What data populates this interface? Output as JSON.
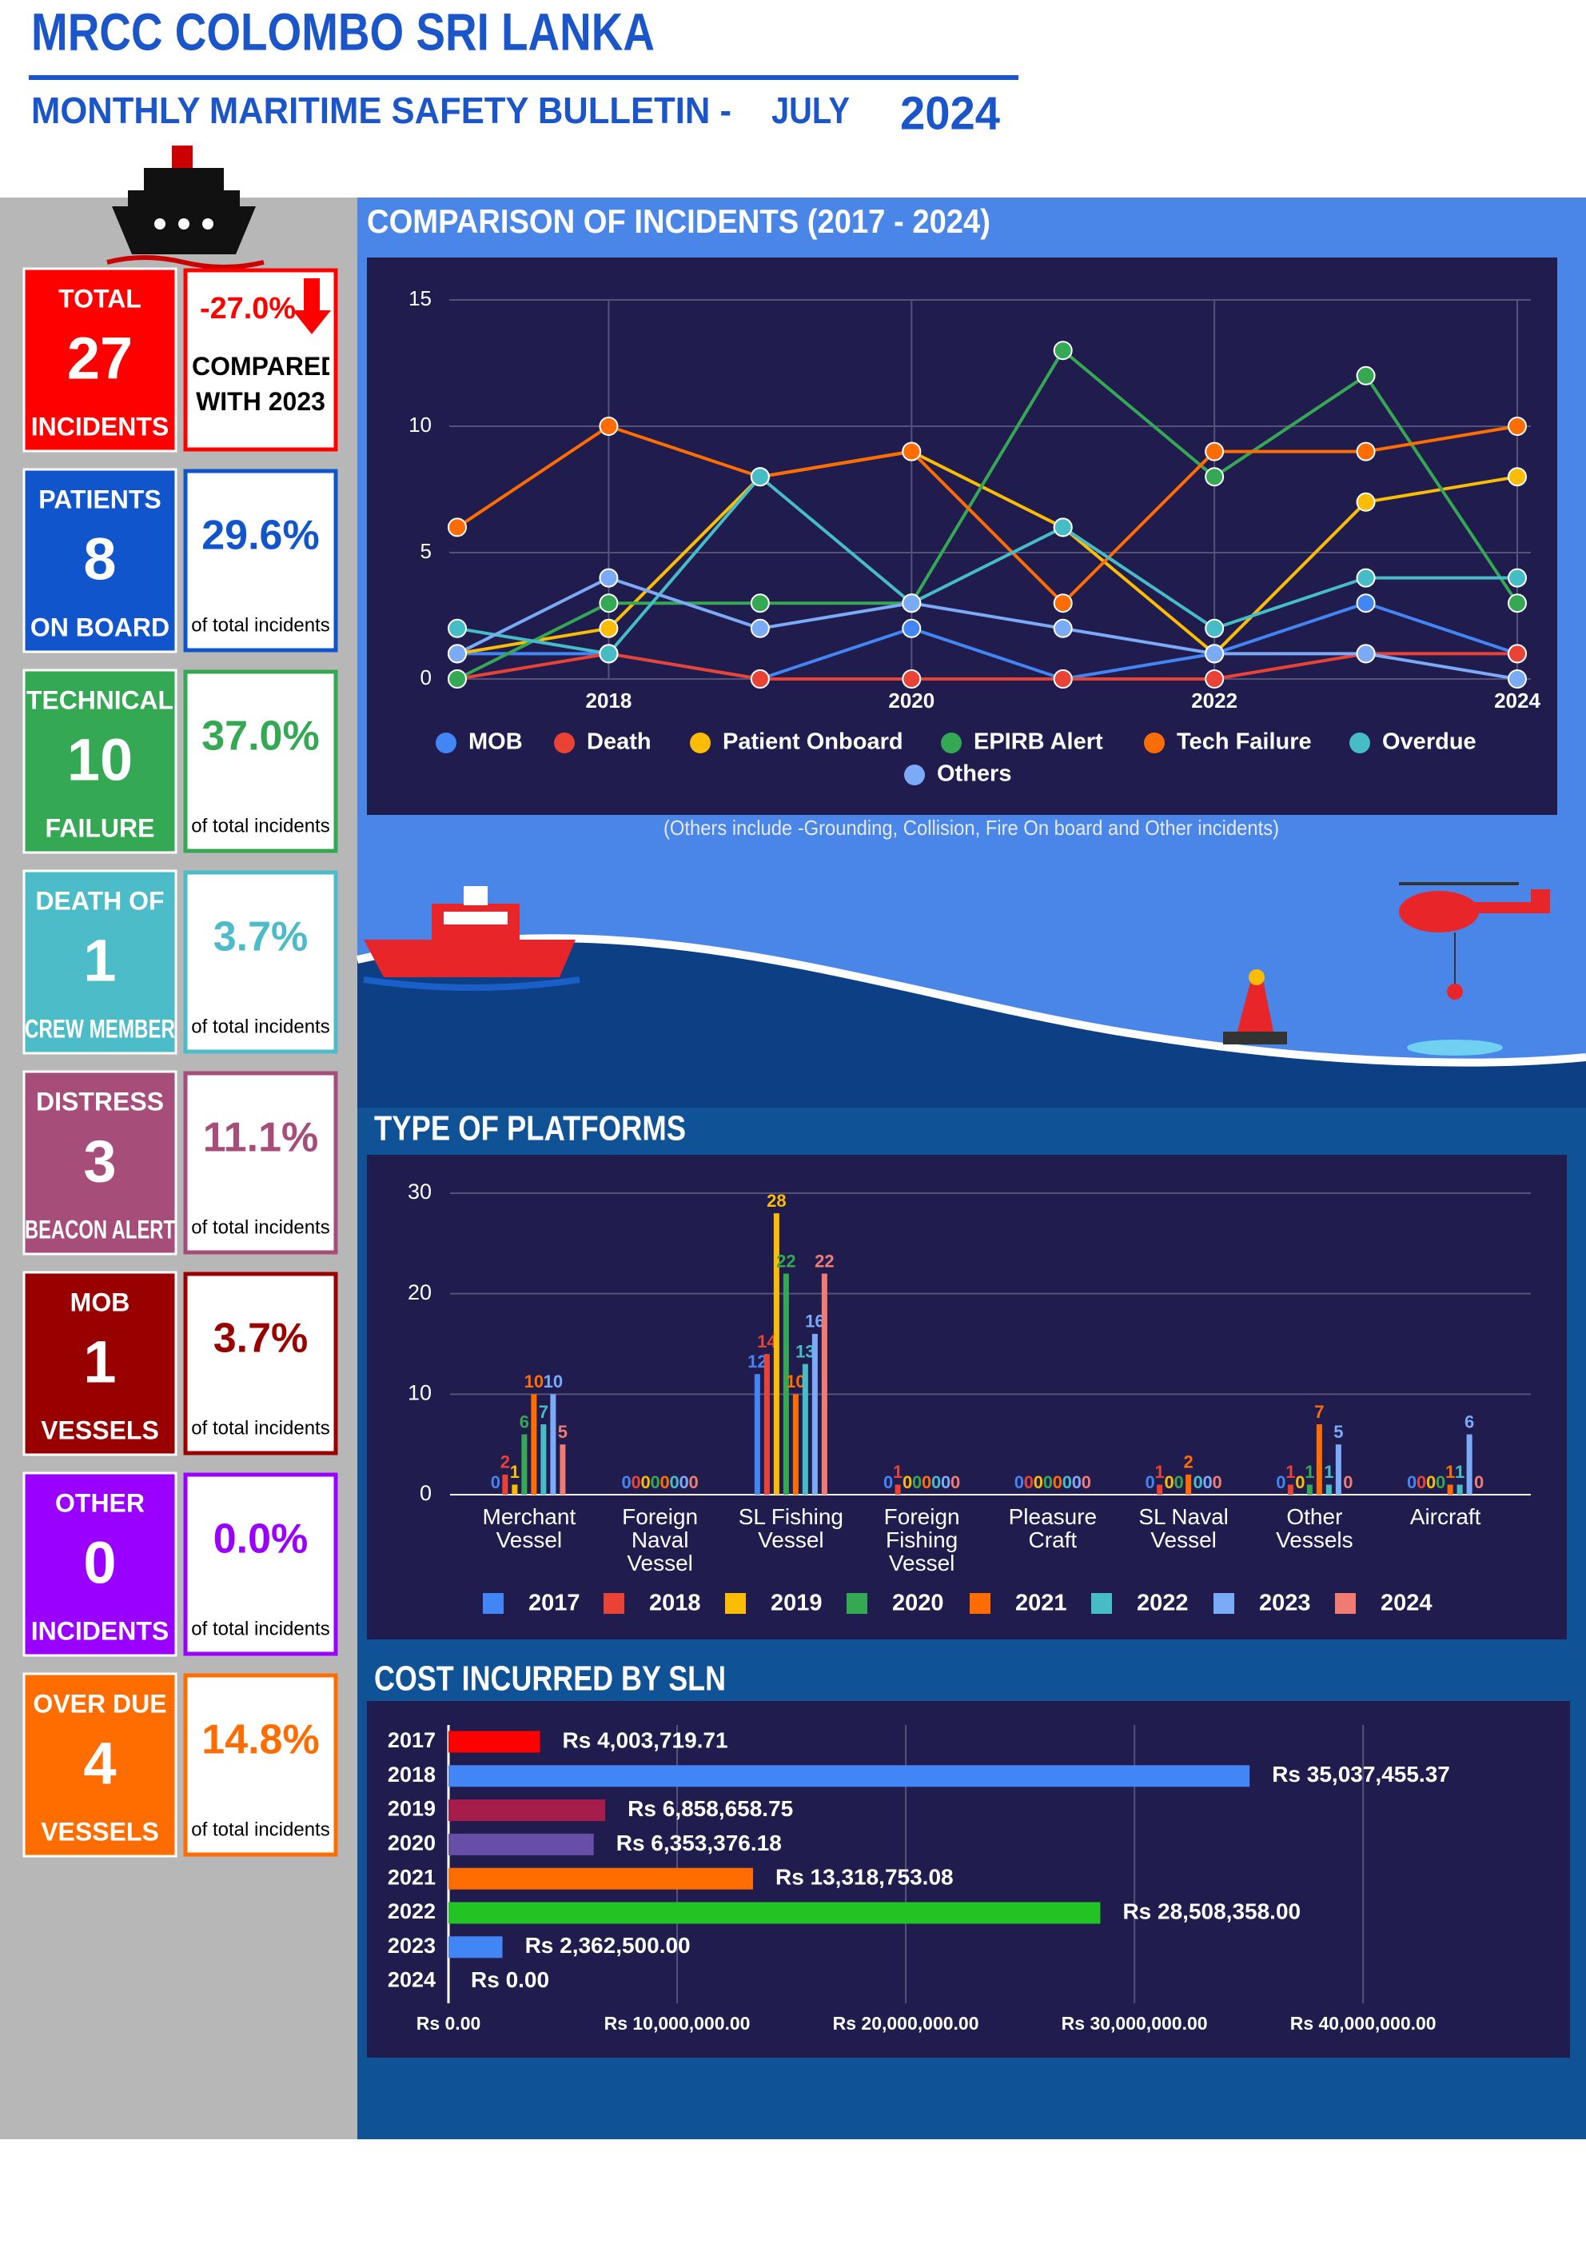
{
  "header": {
    "title": "MRCC COLOMBO SRI LANKA",
    "subtitle": "MONTHLY MARITIME SAFETY BULLETIN -",
    "month": "JULY",
    "year": "2024"
  },
  "cards": [
    {
      "top": "TOTAL",
      "value": "27",
      "bottom": "INCIDENTS",
      "percent": "-27.0%",
      "note": "COMPARED WITH 2023",
      "color": "#ff0000"
    },
    {
      "top": "PATIENTS",
      "value": "8",
      "bottom": "ON BOARD",
      "percent": "29.6%",
      "note": "of total incidents",
      "color": "#1155cc"
    },
    {
      "top": "TECHNICAL",
      "value": "10",
      "bottom": "FAILURE",
      "percent": "37.0%",
      "note": "of total incidents",
      "color": "#34a853"
    },
    {
      "top": "DEATH OF",
      "value": "1",
      "bottom": "CREW MEMBER",
      "percent": "3.7%",
      "note": "of total incidents",
      "color": "#4bbcc8"
    },
    {
      "top": "DISTRESS",
      "value": "3",
      "bottom": "BEACON ALERT",
      "percent": "11.1%",
      "note": "of total incidents",
      "color": "#a64d79"
    },
    {
      "top": "MOB",
      "value": "1",
      "bottom": "VESSELS",
      "percent": "3.7%",
      "note": "of total incidents",
      "color": "#990000"
    },
    {
      "top": "OTHER",
      "value": "0",
      "bottom": "INCIDENTS",
      "percent": "0.0%",
      "note": "of total incidents",
      "color": "#9900ff"
    },
    {
      "top": "OVER DUE",
      "value": "4",
      "bottom": "VESSELS",
      "percent": "14.8%",
      "note": "of total incidents",
      "color": "#ff6d01"
    }
  ],
  "chart_data": [
    {
      "type": "line",
      "title": "COMPARISON OF INCIDENTS (2017 - 2024)",
      "note": "(Others include -Grounding, Collision, Fire On board and Other incidents)",
      "x": [
        2017,
        2018,
        2019,
        2020,
        2021,
        2022,
        2023,
        2024
      ],
      "xlim": [
        2017,
        2024
      ],
      "xticks": [
        2018,
        2020,
        2022,
        2024
      ],
      "ylim": [
        0,
        15
      ],
      "yticks": [
        0,
        5,
        10,
        15
      ],
      "grid": true,
      "legend": "bottom",
      "series": [
        {
          "name": "MOB",
          "color": "#4285f4",
          "values": [
            1,
            1,
            0,
            2,
            0,
            1,
            3,
            1
          ]
        },
        {
          "name": "Death",
          "color": "#ea4335",
          "values": [
            0,
            1,
            0,
            0,
            0,
            0,
            1,
            1
          ]
        },
        {
          "name": "Patient Onboard",
          "color": "#fbbc04",
          "values": [
            1,
            2,
            8,
            9,
            6,
            1,
            7,
            8
          ]
        },
        {
          "name": "EPIRB Alert",
          "color": "#34a853",
          "values": [
            0,
            3,
            3,
            3,
            13,
            8,
            12,
            3
          ]
        },
        {
          "name": "Tech Failure",
          "color": "#ff6d01",
          "values": [
            6,
            10,
            8,
            9,
            3,
            9,
            9,
            10
          ]
        },
        {
          "name": "Overdue",
          "color": "#46bdc6",
          "values": [
            2,
            1,
            8,
            3,
            6,
            2,
            4,
            4
          ]
        },
        {
          "name": "Others",
          "color": "#7baaf7",
          "values": [
            1,
            4,
            2,
            3,
            2,
            1,
            1,
            0
          ]
        }
      ]
    },
    {
      "type": "bar",
      "title": "TYPE OF PLATFORMS",
      "categories": [
        "Merchant Vessel",
        "Foreign Naval Vessel",
        "SL Fishing Vessel",
        "Foreign Fishing Vessel",
        "Pleasure Craft",
        "SL Naval Vessel",
        "Other Vessels",
        "Aircraft"
      ],
      "ylim": [
        0,
        30
      ],
      "yticks": [
        0,
        10,
        20,
        30
      ],
      "grid": true,
      "legend": "bottom",
      "series": [
        {
          "name": "2017",
          "color": "#4285f4",
          "values": [
            0,
            0,
            12,
            0,
            0,
            0,
            0,
            0
          ]
        },
        {
          "name": "2018",
          "color": "#ea4335",
          "values": [
            2,
            0,
            14,
            1,
            0,
            1,
            1,
            0
          ]
        },
        {
          "name": "2019",
          "color": "#fbbc04",
          "values": [
            1,
            0,
            28,
            0,
            0,
            0,
            0,
            0
          ]
        },
        {
          "name": "2020",
          "color": "#34a853",
          "values": [
            6,
            0,
            22,
            0,
            0,
            0,
            1,
            0
          ]
        },
        {
          "name": "2021",
          "color": "#ff6d01",
          "values": [
            10,
            0,
            10,
            0,
            0,
            2,
            7,
            1
          ]
        },
        {
          "name": "2022",
          "color": "#46bdc6",
          "values": [
            7,
            0,
            13,
            0,
            0,
            0,
            1,
            1
          ]
        },
        {
          "name": "2023",
          "color": "#7baaf7",
          "values": [
            10,
            0,
            16,
            0,
            0,
            0,
            5,
            6
          ]
        },
        {
          "name": "2024",
          "color": "#f07b72",
          "values": [
            5,
            0,
            22,
            0,
            0,
            0,
            0,
            0
          ]
        }
      ]
    },
    {
      "type": "barh",
      "title": "COST INCURRED BY SLN",
      "categories": [
        "2017",
        "2018",
        "2019",
        "2020",
        "2021",
        "2022",
        "2023",
        "2024"
      ],
      "values": [
        4003719.71,
        35037455.37,
        6858658.75,
        6353376.18,
        13318753.08,
        28508358.0,
        2362500.0,
        0
      ],
      "value_labels": [
        "Rs 4,003,719.71",
        "Rs 35,037,455.37",
        "Rs 6,858,658.75",
        "Rs 6,353,376.18",
        "Rs 13,318,753.08",
        "Rs 28,508,358.00",
        "Rs 2,362,500.00",
        "Rs 0.00"
      ],
      "colors": [
        "#ff0000",
        "#4285f4",
        "#a61c4b",
        "#674ea7",
        "#ff6d01",
        "#22c322",
        "#4285f4",
        "#4285f4"
      ],
      "xlim": [
        0,
        48000000
      ],
      "grid": true,
      "xticks": [
        {
          "value": 0,
          "label": "Rs 0.00"
        },
        {
          "value": 10000000,
          "label": "Rs 10,000,000.00"
        },
        {
          "value": 20000000,
          "label": "Rs 20,000,000.00"
        },
        {
          "value": 30000000,
          "label": "Rs 30,000,000.00"
        },
        {
          "value": 40000000,
          "label": "Rs 40,000,000.00"
        }
      ]
    }
  ]
}
